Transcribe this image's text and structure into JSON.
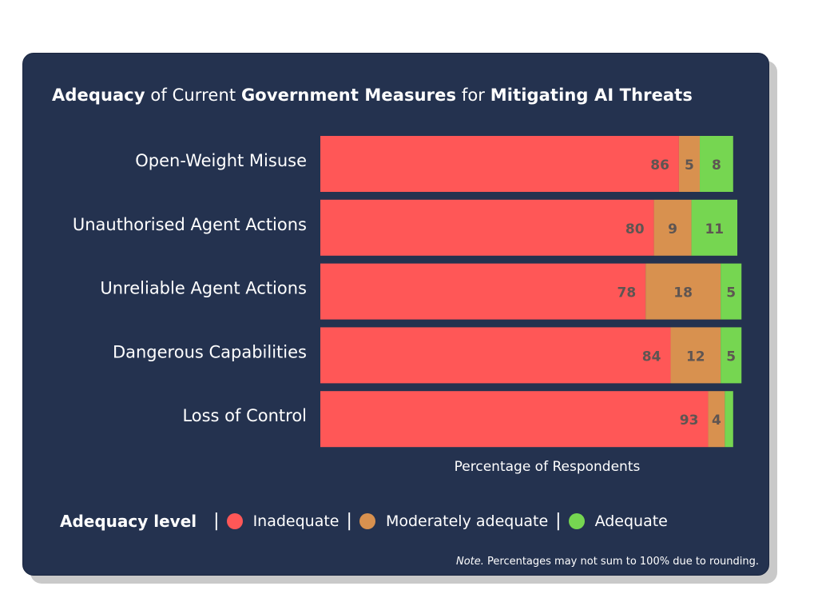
{
  "title": {
    "w1": "Adequacy",
    "w2": " of Current ",
    "w3": "Government Measures",
    "w4": " for ",
    "w5": "Mitigating AI Threats"
  },
  "chart_data": {
    "type": "bar",
    "orientation": "horizontal",
    "stacked": true,
    "categories": [
      "Open-Weight Misuse",
      "Unauthorised Agent Actions",
      "Unreliable Agent Actions",
      "Dangerous Capabilities",
      "Loss of Control"
    ],
    "series": [
      {
        "name": "Inadequate",
        "color": "#ff5757",
        "values": [
          86,
          80,
          78,
          84,
          93
        ]
      },
      {
        "name": "Moderately adequate",
        "color": "#d8914f",
        "values": [
          5,
          9,
          18,
          12,
          4
        ]
      },
      {
        "name": "Adequate",
        "color": "#76d651",
        "values": [
          8,
          11,
          5,
          5,
          2
        ]
      }
    ],
    "data_labels": [
      [
        "86",
        "80",
        "78",
        "84",
        "93"
      ],
      [
        "5",
        "9",
        "18",
        "12",
        "4"
      ],
      [
        "8",
        "11",
        "5",
        "5",
        ""
      ]
    ],
    "xlabel": "Percentage of Respondents",
    "xlim": [
      0,
      100
    ],
    "grid": false,
    "legend_position": "bottom"
  },
  "legend": {
    "title": "Adequacy level",
    "separator": "|"
  },
  "note": {
    "prefix": "Note.",
    "text": " Percentages may not sum to 100% due to rounding."
  }
}
